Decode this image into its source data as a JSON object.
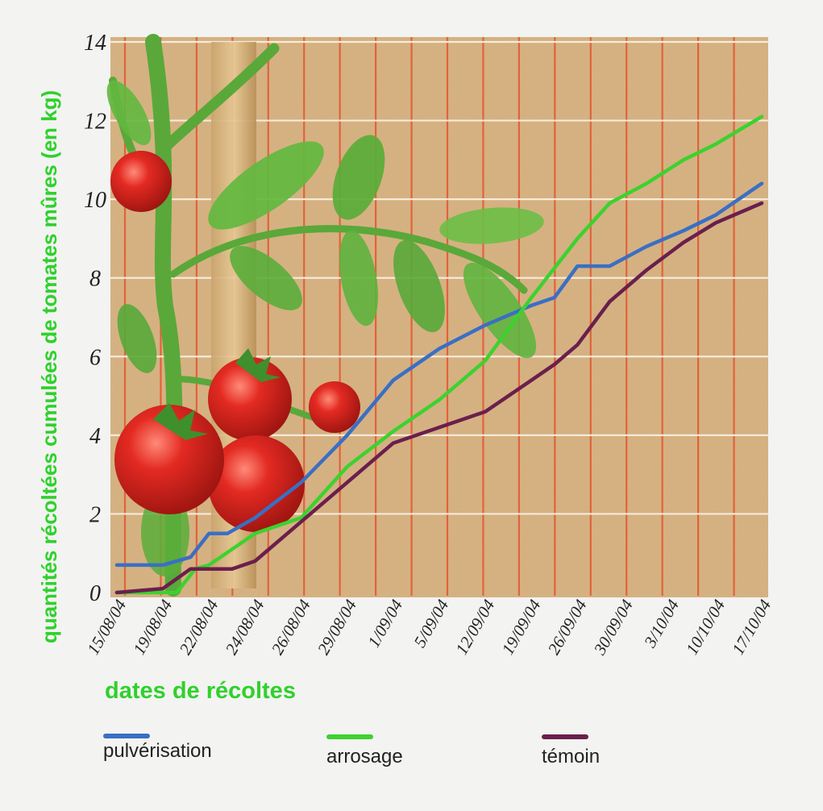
{
  "chart_data": {
    "type": "line",
    "ylabel": "quantités récoltées cumulées de tomates mûres (en kg)",
    "xlabel": "dates de récoltes",
    "ylim": [
      0,
      14
    ],
    "yticks": [
      "0",
      "2",
      "4",
      "6",
      "8",
      "10",
      "12",
      "14"
    ],
    "categories": [
      "15/08/04",
      "19/08/04",
      "22/08/04",
      "24/08/04",
      "26/08/04",
      "29/08/04",
      "1/09/04",
      "5/09/04",
      "12/09/04",
      "19/09/04",
      "26/09/04",
      "30/09/04",
      "3/10/04",
      "10/10/04",
      "17/10/04"
    ],
    "legend_position": "bottom",
    "grid": true,
    "series": [
      {
        "name": "pulvérisation",
        "color": "#3a6fc4",
        "points": [
          [
            0,
            0.7
          ],
          [
            1,
            0.7
          ],
          [
            1.6,
            0.9
          ],
          [
            2,
            1.5
          ],
          [
            2.4,
            1.5
          ],
          [
            3,
            1.9
          ],
          [
            4,
            2.8
          ],
          [
            5,
            4.0
          ],
          [
            6,
            5.4
          ],
          [
            7,
            6.2
          ],
          [
            8,
            6.8
          ],
          [
            9,
            7.3
          ],
          [
            9.5,
            7.5
          ],
          [
            10,
            8.3
          ],
          [
            10.7,
            8.3
          ],
          [
            11.5,
            8.8
          ],
          [
            12.3,
            9.2
          ],
          [
            13,
            9.6
          ],
          [
            14,
            10.4
          ]
        ]
      },
      {
        "name": "arrosage",
        "color": "#3cd22e",
        "points": [
          [
            0,
            0.0
          ],
          [
            1,
            0.0
          ],
          [
            1.3,
            0.0
          ],
          [
            1.7,
            0.6
          ],
          [
            2,
            0.7
          ],
          [
            2.5,
            1.1
          ],
          [
            3,
            1.5
          ],
          [
            4,
            1.9
          ],
          [
            5,
            3.2
          ],
          [
            6,
            4.1
          ],
          [
            7,
            4.9
          ],
          [
            8,
            5.9
          ],
          [
            9,
            7.5
          ],
          [
            10,
            9.0
          ],
          [
            10.7,
            9.9
          ],
          [
            11.5,
            10.4
          ],
          [
            12.3,
            11.0
          ],
          [
            13,
            11.4
          ],
          [
            14,
            12.1
          ]
        ]
      },
      {
        "name": "témoin",
        "color": "#6a1f4c",
        "points": [
          [
            0,
            0.0
          ],
          [
            1,
            0.1
          ],
          [
            1.6,
            0.6
          ],
          [
            2,
            0.6
          ],
          [
            2.5,
            0.6
          ],
          [
            3,
            0.8
          ],
          [
            4,
            1.8
          ],
          [
            5,
            2.8
          ],
          [
            6,
            3.8
          ],
          [
            7,
            4.2
          ],
          [
            8,
            4.6
          ],
          [
            9,
            5.4
          ],
          [
            9.5,
            5.8
          ],
          [
            10,
            6.3
          ],
          [
            10.7,
            7.4
          ],
          [
            11.5,
            8.2
          ],
          [
            12.3,
            8.9
          ],
          [
            13,
            9.4
          ],
          [
            14,
            9.9
          ]
        ]
      }
    ]
  },
  "colors": {
    "plot_background": "#d9b483",
    "vertical_grid": "#e2623a",
    "horizontal_grid": "#f6ead8",
    "axis_title": "#2fd12c"
  }
}
